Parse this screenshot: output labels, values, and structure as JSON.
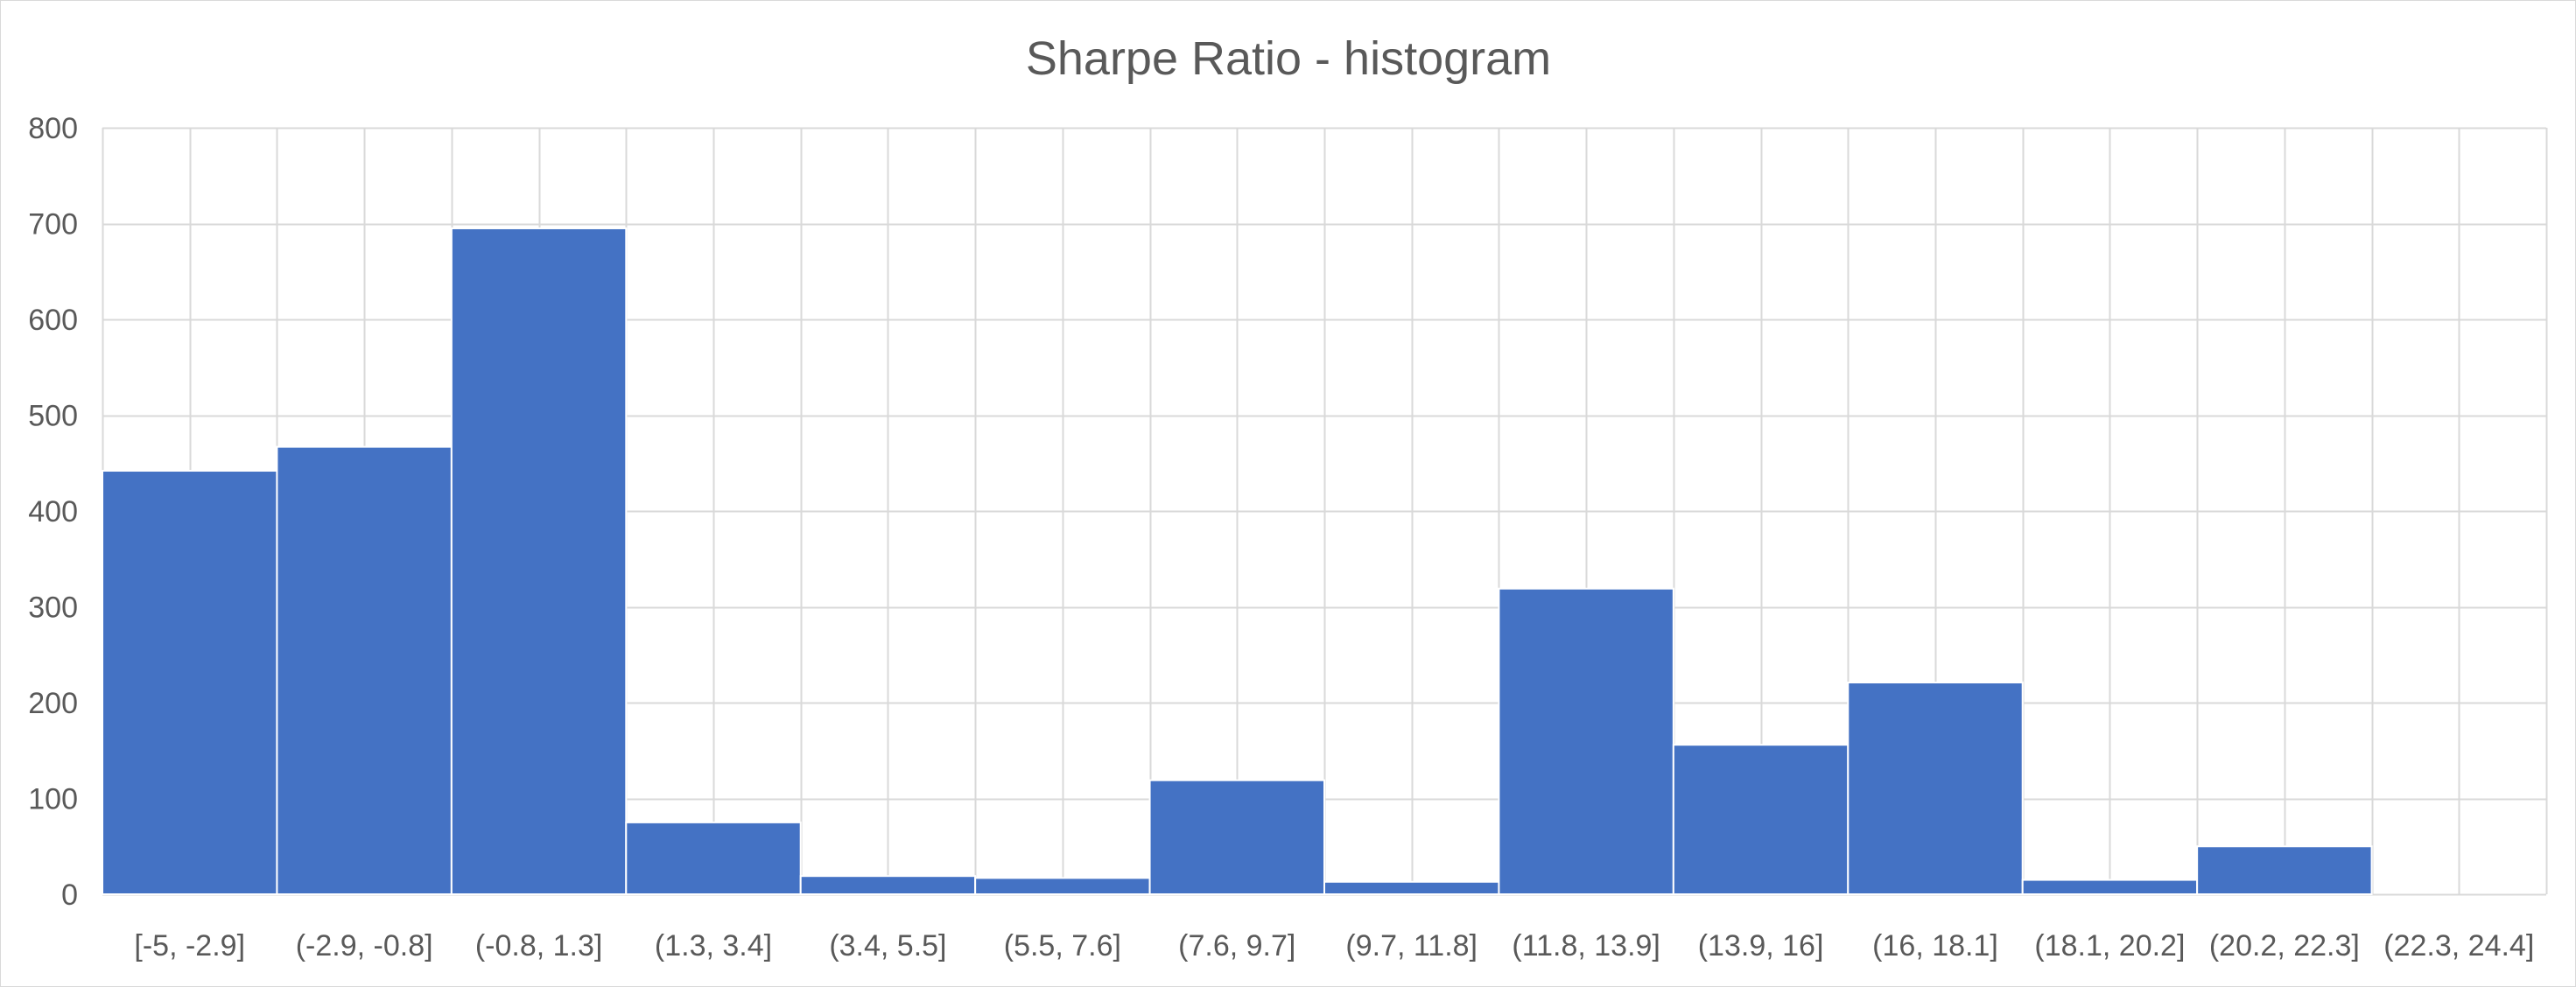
{
  "chart_data": {
    "type": "bar",
    "title": "Sharpe Ratio - histogram",
    "xlabel": "",
    "ylabel": "",
    "categories": [
      "[-5, -2.9]",
      "(-2.9, -0.8]",
      "(-0.8, 1.3]",
      "(1.3, 3.4]",
      "(3.4, 5.5]",
      "(5.5, 7.6]",
      "(7.6, 9.7]",
      "(9.7, 11.8]",
      "(11.8, 13.9]",
      "(13.9, 16]",
      "(16, 18.1]",
      "(18.1, 20.2]",
      "(20.2, 22.3]",
      "(22.3, 24.4]"
    ],
    "values": [
      442,
      467,
      695,
      75,
      19,
      17,
      119,
      13,
      319,
      156,
      221,
      15,
      50,
      0
    ],
    "ylim": [
      0,
      800
    ],
    "yticks": [
      0,
      100,
      200,
      300,
      400,
      500,
      600,
      700,
      800
    ],
    "grid": true,
    "bar_color": "#4472c4",
    "gap_width": 0
  }
}
